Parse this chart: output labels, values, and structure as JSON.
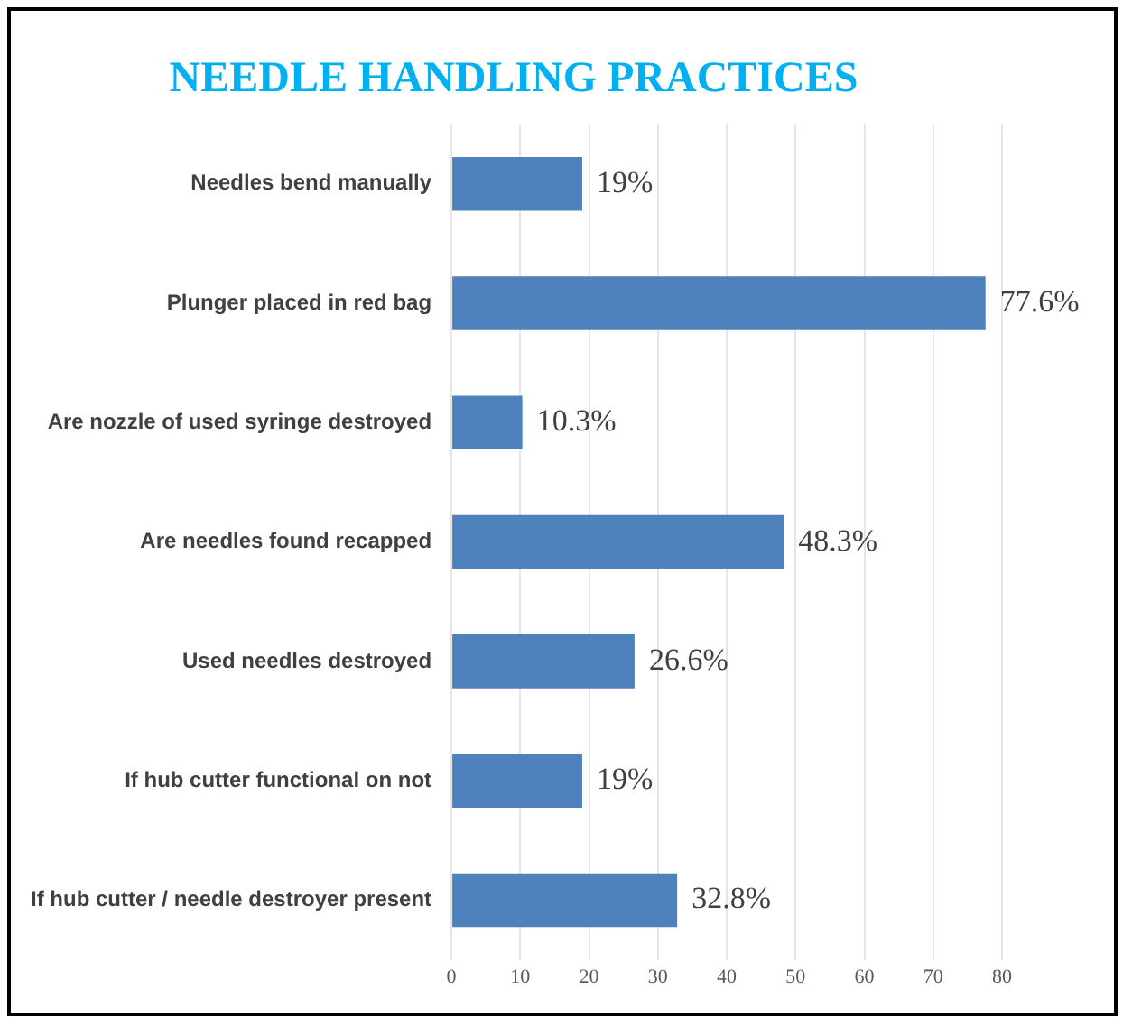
{
  "chart_data": {
    "type": "bar",
    "orientation": "horizontal",
    "title": "NEEDLE HANDLING PRACTICES",
    "categories": [
      "Needles bend manually",
      "Plunger placed in red bag",
      "Are nozzle of used syringe destroyed",
      "Are needles found recapped",
      "Used needles destroyed",
      "If hub cutter functional on not",
      "If hub cutter / needle destroyer present"
    ],
    "values": [
      19,
      77.6,
      10.3,
      48.3,
      26.6,
      19,
      32.8
    ],
    "value_labels": [
      "19%",
      "77.6%",
      "10.3%",
      "48.3%",
      "26.6%",
      "19%",
      "32.8%"
    ],
    "color": "#4f81bd",
    "xlim": [
      0,
      80
    ],
    "xticks": [
      0,
      10,
      20,
      30,
      40,
      50,
      60,
      70,
      80
    ],
    "grid": "x",
    "legend": false
  }
}
